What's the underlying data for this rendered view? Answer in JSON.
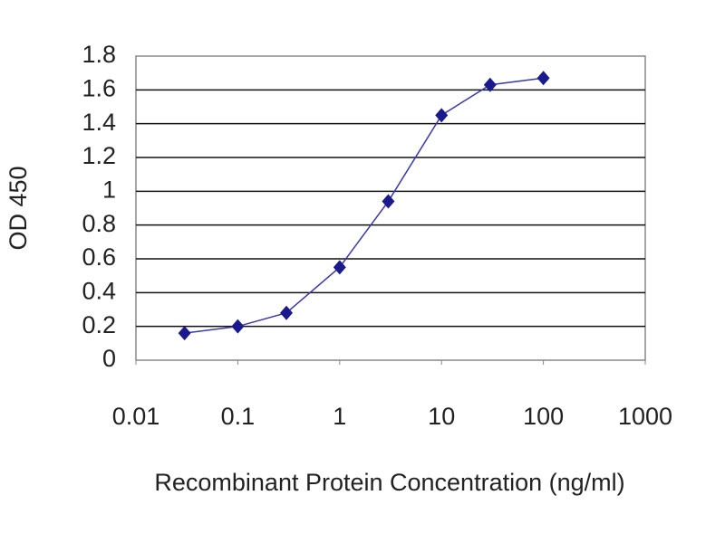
{
  "chart_data": {
    "type": "line",
    "x_label": "Recombinant Protein Concentration (ng/ml)",
    "y_label": "OD 450",
    "x": [
      0.03,
      0.1,
      0.3,
      1,
      3,
      10,
      30,
      100
    ],
    "series": [
      {
        "color": "#1a1a8c",
        "values": [
          0.16,
          0.2,
          0.28,
          0.55,
          0.94,
          1.45,
          1.63,
          1.67
        ]
      }
    ],
    "xscale": "log",
    "xlim": [
      0.01,
      1000
    ],
    "xticks": [
      0.01,
      0.1,
      1,
      10,
      100,
      1000
    ],
    "ylim": [
      0,
      1.8
    ],
    "yticks": [
      0,
      0.2,
      0.4,
      0.6,
      0.8,
      1,
      1.2,
      1.4,
      1.6,
      1.8
    ],
    "grid": true
  }
}
